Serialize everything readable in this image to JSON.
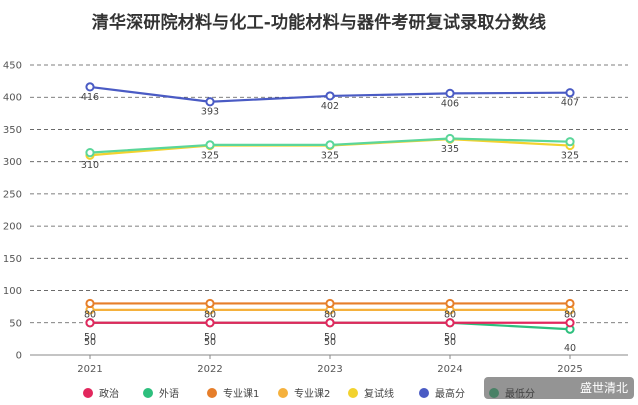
{
  "chart_data": {
    "type": "line",
    "title": "清华深研院材料与化工-功能材料与器件考研复试录取分数线",
    "xlabel": "",
    "ylabel": "",
    "categories": [
      "2021",
      "2022",
      "2023",
      "2024",
      "2025"
    ],
    "ylim": [
      0,
      450
    ],
    "yticks": [
      0,
      50,
      100,
      150,
      200,
      250,
      300,
      350,
      400,
      450
    ],
    "grid": true,
    "legend_position": "bottom",
    "series": [
      {
        "name": "政治",
        "color": "#e2275d",
        "values": [
          50,
          50,
          50,
          50,
          50
        ],
        "labels": [
          "50",
          "50",
          "50",
          "50",
          ""
        ]
      },
      {
        "name": "外语",
        "color": "#2dbf7d",
        "values": [
          50,
          50,
          50,
          50,
          40
        ],
        "labels": [
          "50",
          "50",
          "50",
          "50",
          "40"
        ]
      },
      {
        "name": "专业课1",
        "color": "#e67e2a",
        "values": [
          80,
          80,
          80,
          80,
          80
        ],
        "labels": [
          "80",
          "80",
          "80",
          "80",
          "80"
        ]
      },
      {
        "name": "专业课2",
        "color": "#f5b13d",
        "values": [
          70,
          70,
          70,
          70,
          70
        ],
        "labels": [
          "",
          "",
          "",
          "",
          ""
        ]
      },
      {
        "name": "复试线",
        "color": "#f2d22e",
        "values": [
          310,
          325,
          325,
          335,
          325
        ],
        "labels": [
          "310",
          "325",
          "325",
          "335",
          "325"
        ]
      },
      {
        "name": "最高分",
        "color": "#4a5bc4",
        "values": [
          416,
          393,
          402,
          406,
          407
        ],
        "labels": [
          "416",
          "393",
          "402",
          "406",
          "407"
        ]
      },
      {
        "name": "最低分",
        "color": "#5ad69a",
        "values": [
          314,
          326,
          326,
          336,
          331
        ],
        "labels": [
          "",
          "",
          "",
          "",
          ""
        ]
      }
    ]
  },
  "watermark": "盛世清北"
}
